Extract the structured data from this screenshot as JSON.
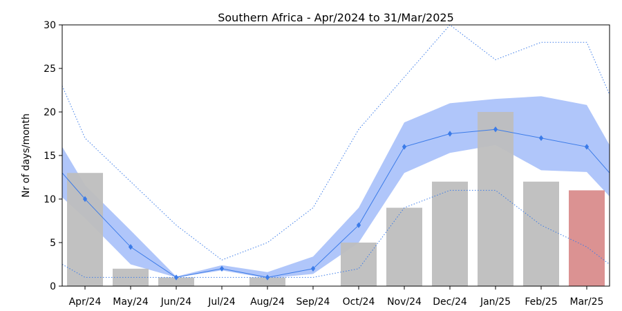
{
  "chart_data": {
    "type": "bar",
    "title": "Southern Africa - Apr/2024 to 31/Mar/2025",
    "xlabel": "",
    "ylabel": "Nr of days/month",
    "ylim": [
      0,
      30
    ],
    "yticks": [
      0,
      5,
      10,
      15,
      20,
      25,
      30
    ],
    "grid": false,
    "categories": [
      "Apr/24",
      "May/24",
      "Jun/24",
      "Jul/24",
      "Aug/24",
      "Sep/24",
      "Oct/24",
      "Nov/24",
      "Dec/24",
      "Jan/25",
      "Feb/25",
      "Mar/25"
    ],
    "bars": {
      "values": [
        13,
        2,
        1,
        0,
        1,
        0,
        5,
        9,
        12,
        20,
        12,
        11
      ],
      "color": "#bebebe",
      "highlight_color": "#d98c8c",
      "highlight_index": 11
    },
    "mean": {
      "values": [
        13,
        10,
        4.5,
        1,
        2,
        1,
        2,
        7,
        16,
        17.5,
        18,
        17,
        16,
        13
      ],
      "color": "#3b7be8"
    },
    "band": {
      "lower": [
        10.2,
        7.8,
        2.5,
        1,
        1.8,
        0.9,
        1.4,
        5,
        13,
        15.3,
        16.2,
        13.3,
        13.1,
        10.3
      ],
      "upper": [
        16,
        11.6,
        6.4,
        1.1,
        2.4,
        1.6,
        3.4,
        9,
        18.8,
        21,
        21.5,
        21.8,
        20.8,
        16.2
      ],
      "color": "#6f97f5"
    },
    "max": {
      "values": [
        23,
        17,
        12,
        7,
        3,
        5,
        9,
        18,
        24,
        30,
        26,
        28,
        28,
        22
      ],
      "color": "#3b7be8"
    },
    "min": {
      "values": [
        2.5,
        1,
        1,
        1,
        1,
        1,
        1,
        2,
        9,
        11,
        11,
        7,
        4.5,
        2.5
      ],
      "color": "#3b7be8"
    }
  }
}
